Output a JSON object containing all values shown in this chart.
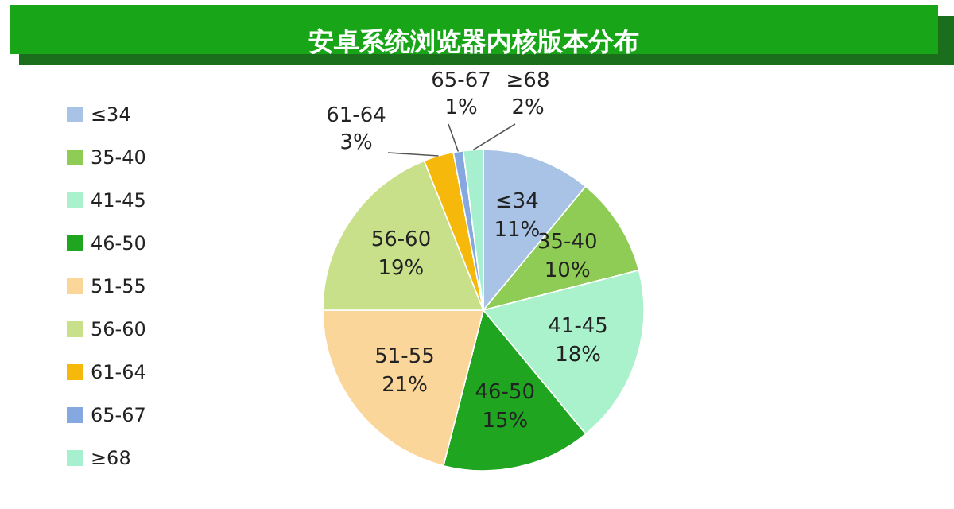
{
  "chart_data": {
    "type": "pie",
    "title": "安卓系统浏览器内核版本分布",
    "categories": [
      "≤34",
      "35-40",
      "41-45",
      "46-50",
      "51-55",
      "56-60",
      "61-64",
      "65-67",
      "≥68"
    ],
    "values": [
      11,
      10,
      18,
      15,
      21,
      19,
      3,
      1,
      2
    ],
    "value_labels": [
      "11%",
      "10%",
      "18%",
      "15%",
      "21%",
      "19%",
      "3%",
      "1%",
      "2%"
    ],
    "colors": [
      "#a9c3e6",
      "#8fcc55",
      "#a9f2cc",
      "#1fa51f",
      "#fad69a",
      "#c9e08a",
      "#f6b80a",
      "#86a8e0",
      "#a6f0cf"
    ],
    "data_labels": true,
    "legend": "left"
  }
}
